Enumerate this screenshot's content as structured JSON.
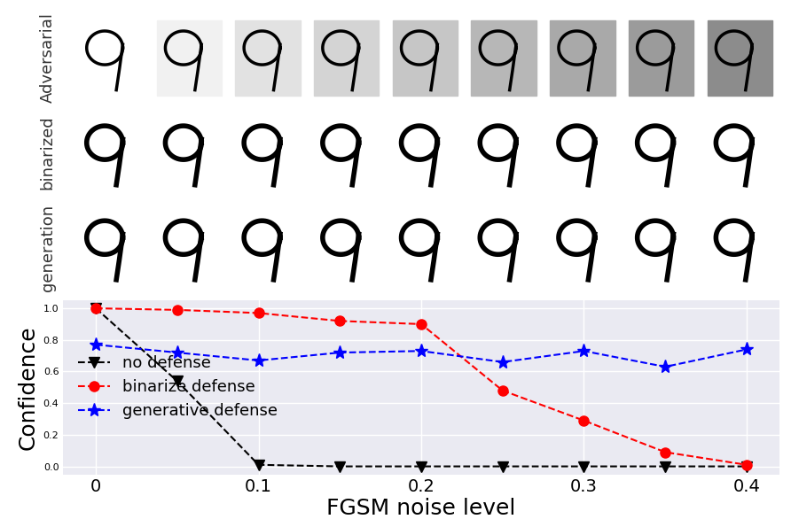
{
  "image_rows": [
    "Adversarial",
    "binarized",
    "generation"
  ],
  "chart_data": {
    "type": "line",
    "x_label": "FGSM noise level",
    "y_label": "Confidence",
    "x": [
      0,
      0.05,
      0.1,
      0.15,
      0.2,
      0.25,
      0.3,
      0.35,
      0.4
    ],
    "xlim": [
      -0.02,
      0.42
    ],
    "xticks": [
      0,
      0.1,
      0.2,
      0.3,
      0.4
    ],
    "ylim": [
      -0.05,
      1.05
    ],
    "yticks": [
      {
        "value": 0.0,
        "label": "0.0"
      },
      0.2,
      0.4,
      0.6,
      0.8,
      {
        "value": 1.0,
        "label": "1.0"
      }
    ],
    "grid": true,
    "legend": "center left",
    "series": [
      {
        "name": "no defense",
        "color": "black",
        "marker": "v",
        "line_style": "dashed",
        "values": [
          1.0,
          0.54,
          0.01,
          0.0,
          0.0,
          0.0,
          0.0,
          0.0,
          0.0
        ]
      },
      {
        "name": "binarize defense",
        "color": "red",
        "marker": "o",
        "line_style": "dashed",
        "values": [
          1.0,
          0.99,
          0.97,
          0.92,
          0.9,
          0.48,
          0.29,
          0.09,
          0.01
        ]
      },
      {
        "name": "generative defense",
        "color": "blue",
        "marker": "*",
        "line_style": "dashed",
        "values": [
          0.77,
          0.72,
          0.67,
          0.72,
          0.73,
          0.66,
          0.73,
          0.63,
          0.74
        ]
      }
    ]
  }
}
